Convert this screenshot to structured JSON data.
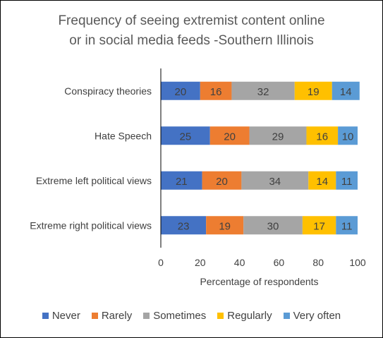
{
  "chart_data": {
    "type": "bar",
    "orientation": "horizontal",
    "stacked": true,
    "title": [
      "Frequency of seeing extremist content online",
      "or in social media feeds -Southern Illinois"
    ],
    "xlabel": "Percentage of respondents",
    "ylabel": "",
    "xlim": [
      0,
      100
    ],
    "xticks": [
      "0",
      "20",
      "40",
      "60",
      "80",
      "100"
    ],
    "grid": false,
    "legend_position": "bottom",
    "categories": [
      "Conspiracy theories",
      "Hate Speech",
      "Extreme left political views",
      "Extreme right political views"
    ],
    "series": [
      {
        "name": "Never",
        "color": "#4472C4",
        "values": [
          20,
          25,
          21,
          23
        ]
      },
      {
        "name": "Rarely",
        "color": "#ED7D31",
        "values": [
          16,
          20,
          20,
          19
        ]
      },
      {
        "name": "Sometimes",
        "color": "#A5A5A5",
        "values": [
          32,
          29,
          34,
          30
        ]
      },
      {
        "name": "Regularly",
        "color": "#FFC000",
        "values": [
          19,
          16,
          14,
          17
        ]
      },
      {
        "name": "Very often",
        "color": "#5B9BD5",
        "values": [
          14,
          10,
          11,
          11
        ]
      }
    ]
  }
}
